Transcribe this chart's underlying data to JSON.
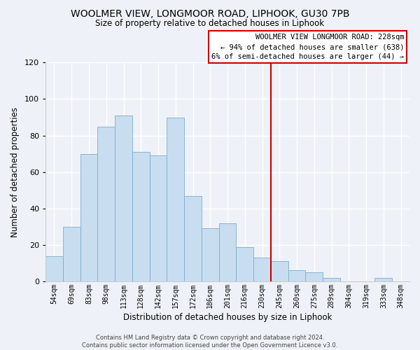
{
  "title": "WOOLMER VIEW, LONGMOOR ROAD, LIPHOOK, GU30 7PB",
  "subtitle": "Size of property relative to detached houses in Liphook",
  "xlabel": "Distribution of detached houses by size in Liphook",
  "ylabel": "Number of detached properties",
  "bar_labels": [
    "54sqm",
    "69sqm",
    "83sqm",
    "98sqm",
    "113sqm",
    "128sqm",
    "142sqm",
    "157sqm",
    "172sqm",
    "186sqm",
    "201sqm",
    "216sqm",
    "230sqm",
    "245sqm",
    "260sqm",
    "275sqm",
    "289sqm",
    "304sqm",
    "319sqm",
    "333sqm",
    "348sqm"
  ],
  "bar_values": [
    14,
    30,
    70,
    85,
    91,
    71,
    69,
    90,
    47,
    29,
    32,
    19,
    13,
    11,
    6,
    5,
    2,
    0,
    0,
    2,
    0
  ],
  "bar_color": "#c9ddf0",
  "bar_edge_color": "#7aaecc",
  "vline_x_index": 12,
  "vline_color": "#cc0000",
  "annotation_title": "WOOLMER VIEW LONGMOOR ROAD: 228sqm",
  "annotation_line1": "← 94% of detached houses are smaller (638)",
  "annotation_line2": "6% of semi-detached houses are larger (44) →",
  "ylim": [
    0,
    120
  ],
  "yticks": [
    0,
    20,
    40,
    60,
    80,
    100,
    120
  ],
  "background_color": "#eef2f8",
  "plot_background": "#eef2f8",
  "grid_color": "#ffffff",
  "footer1": "Contains HM Land Registry data © Crown copyright and database right 2024.",
  "footer2": "Contains public sector information licensed under the Open Government Licence v3.0."
}
